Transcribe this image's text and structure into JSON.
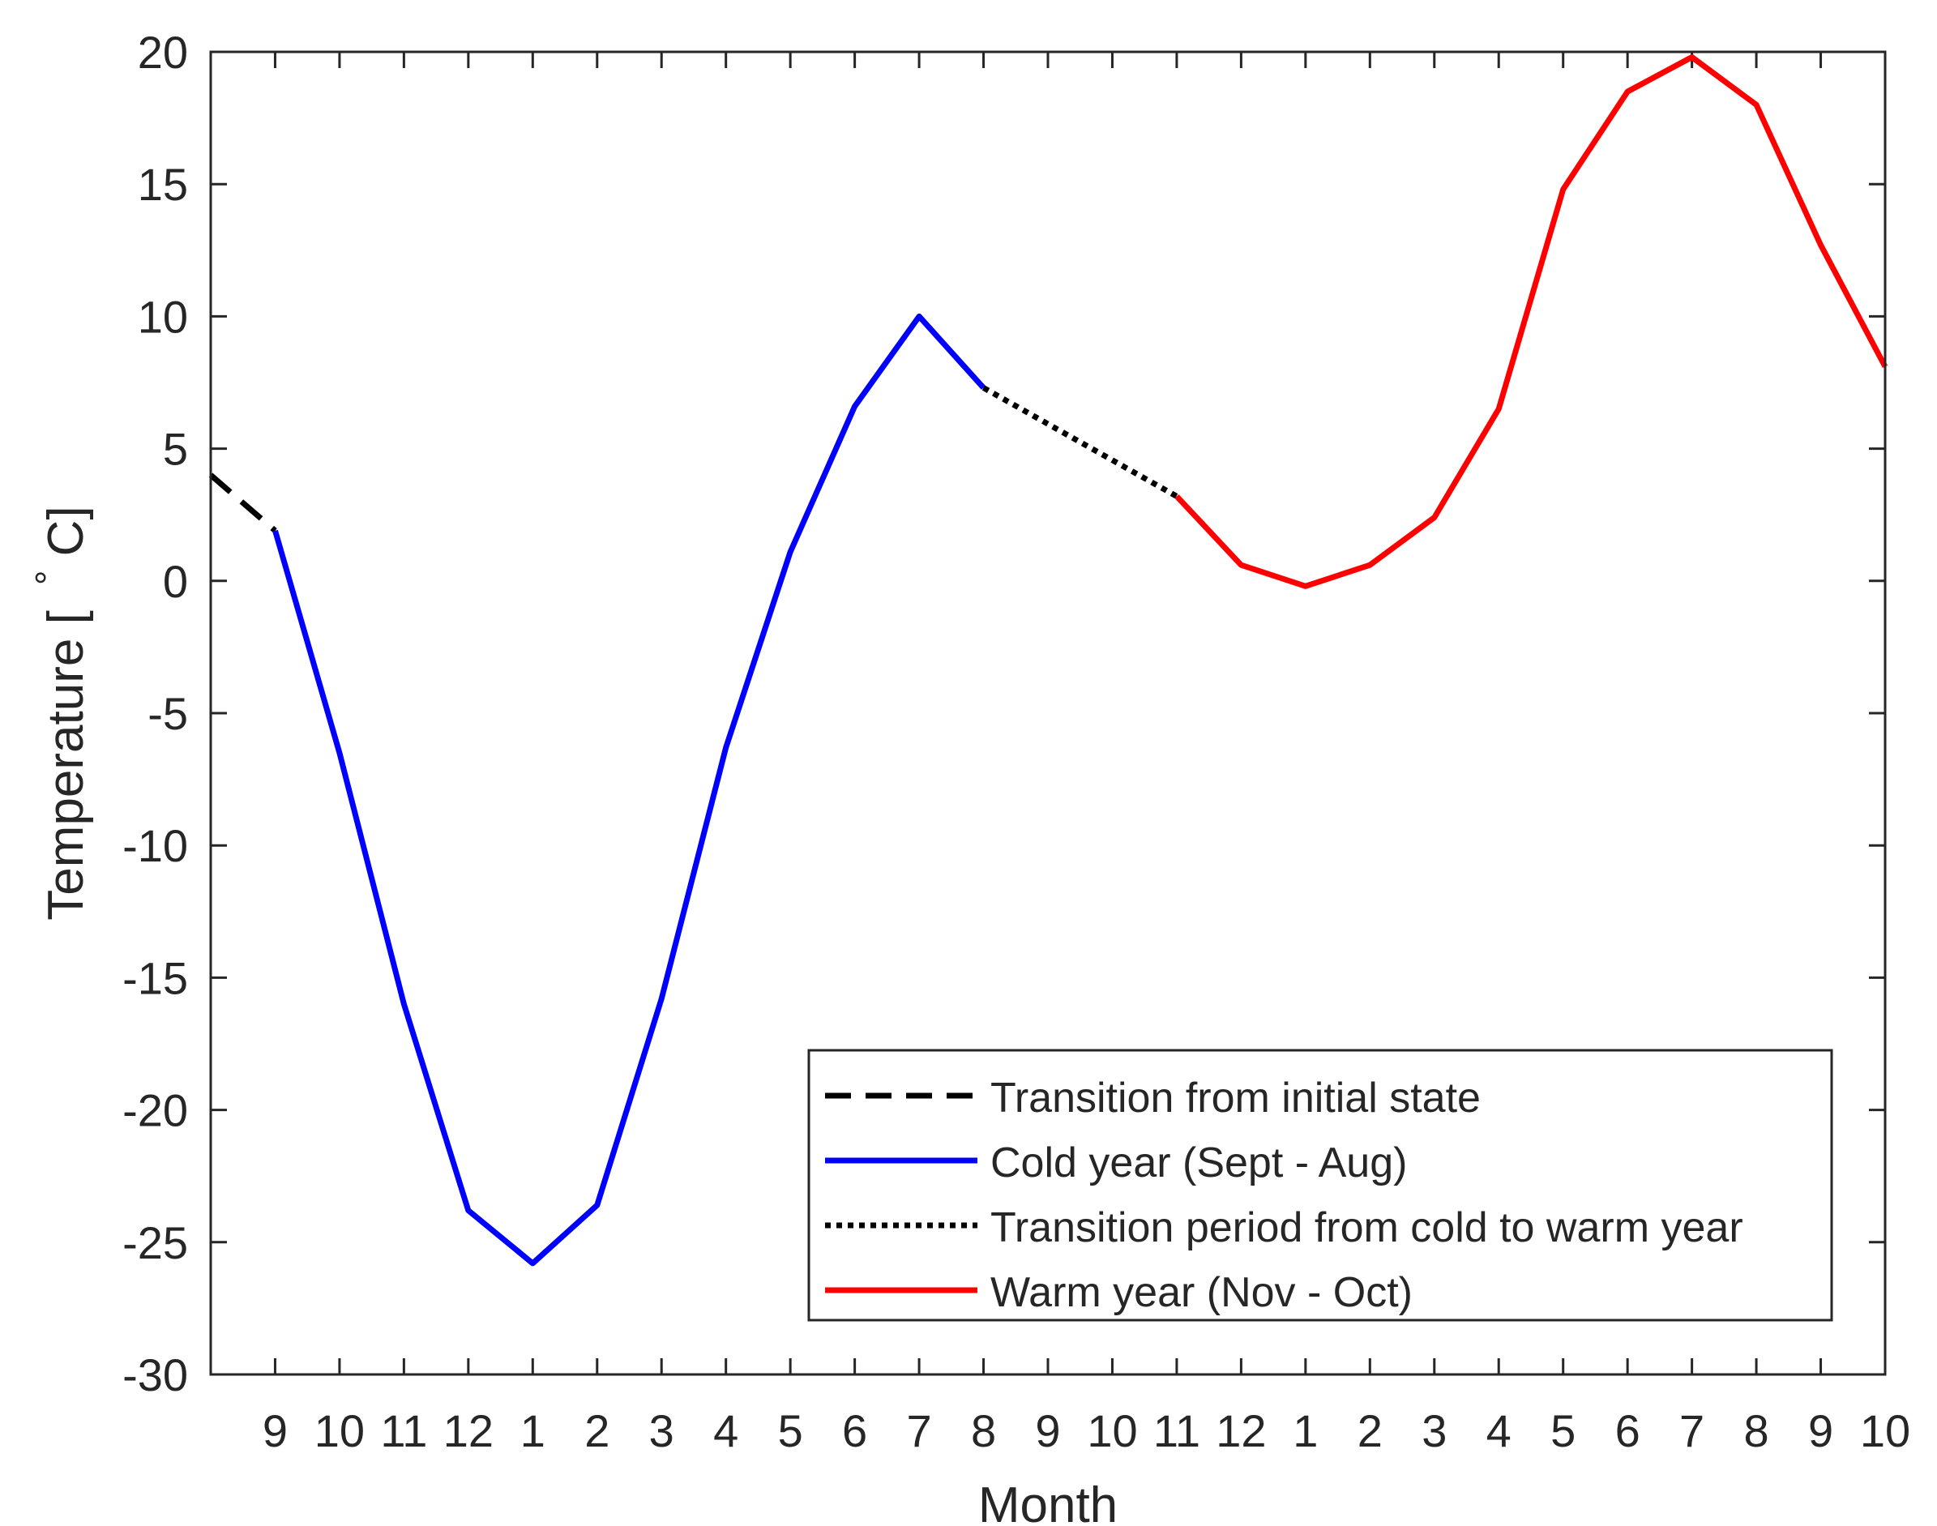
{
  "chart_data": {
    "type": "line",
    "title": "",
    "xlabel": "Month",
    "ylabel": "Temperature [ °C]",
    "ylabel_main": "Temperature [",
    "ylabel_degree": "°",
    "ylabel_unit": "C]",
    "x_range": [
      0,
      26
    ],
    "ylim": [
      -30,
      20
    ],
    "x_ticks": [
      {
        "x": 1,
        "label": "9"
      },
      {
        "x": 2,
        "label": "10"
      },
      {
        "x": 3,
        "label": "11"
      },
      {
        "x": 4,
        "label": "12"
      },
      {
        "x": 5,
        "label": "1"
      },
      {
        "x": 6,
        "label": "2"
      },
      {
        "x": 7,
        "label": "3"
      },
      {
        "x": 8,
        "label": "4"
      },
      {
        "x": 9,
        "label": "5"
      },
      {
        "x": 10,
        "label": "6"
      },
      {
        "x": 11,
        "label": "7"
      },
      {
        "x": 12,
        "label": "8"
      },
      {
        "x": 13,
        "label": "9"
      },
      {
        "x": 14,
        "label": "10"
      },
      {
        "x": 15,
        "label": "11"
      },
      {
        "x": 16,
        "label": "12"
      },
      {
        "x": 17,
        "label": "1"
      },
      {
        "x": 18,
        "label": "2"
      },
      {
        "x": 19,
        "label": "3"
      },
      {
        "x": 20,
        "label": "4"
      },
      {
        "x": 21,
        "label": "5"
      },
      {
        "x": 22,
        "label": "6"
      },
      {
        "x": 23,
        "label": "7"
      },
      {
        "x": 24,
        "label": "8"
      },
      {
        "x": 25,
        "label": "9"
      },
      {
        "x": 26,
        "label": "10"
      }
    ],
    "y_ticks": [
      20,
      15,
      10,
      5,
      0,
      -5,
      -10,
      -15,
      -20,
      -25,
      -30
    ],
    "legend_position": "bottom-right",
    "series": [
      {
        "name": "Transition from initial state",
        "style": "dashed",
        "color": "#000000",
        "x": [
          0,
          1
        ],
        "y": [
          4.0,
          1.9
        ]
      },
      {
        "name": "Cold year (Sept - Aug)",
        "style": "solid",
        "color": "#0000ff",
        "x": [
          1,
          2,
          3,
          4,
          5,
          6,
          7,
          8,
          9,
          10,
          11,
          12
        ],
        "y": [
          1.9,
          -6.5,
          -16.0,
          -23.8,
          -25.8,
          -23.6,
          -15.8,
          -6.3,
          1.1,
          6.6,
          10.0,
          7.3
        ]
      },
      {
        "name": "Transition period from cold to warm year",
        "style": "dotted",
        "color": "#000000",
        "x": [
          12,
          15
        ],
        "y": [
          7.3,
          3.2
        ]
      },
      {
        "name": "Warm year (Nov - Oct)",
        "style": "solid",
        "color": "#ff0000",
        "x": [
          15,
          16,
          17,
          18,
          19,
          20,
          21,
          22,
          23,
          24,
          25,
          26
        ],
        "y": [
          3.2,
          0.6,
          -0.2,
          0.6,
          2.4,
          6.5,
          14.8,
          18.5,
          19.8,
          18.0,
          12.7,
          8.1
        ]
      }
    ]
  }
}
